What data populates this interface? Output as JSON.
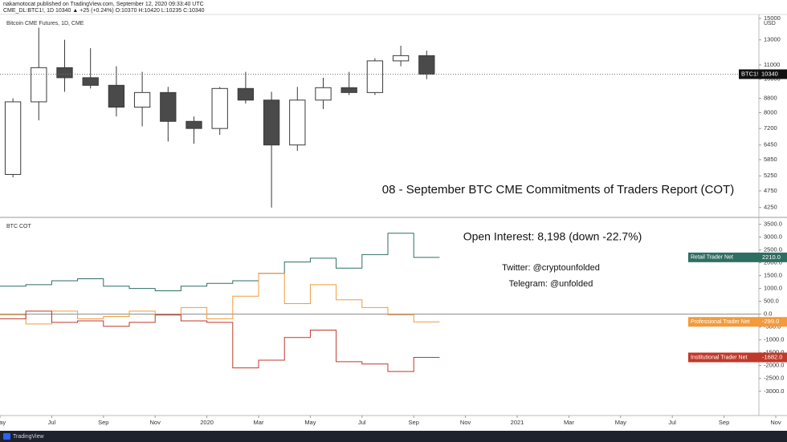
{
  "header": {
    "line1": "nakamotocat published on TradingView.com, September 12, 2020 09:33:40 UTC",
    "line2": "CME_DL:BTC1!, 1D  10340 ▲ +25 (+0.24%) O:10370 H:10420 L:10235 C:10340"
  },
  "footer": {
    "brand": "TradingView"
  },
  "chart_data": [
    {
      "type": "candlestick",
      "title": "Bitcoin CME Futures, 1D, CME",
      "unit": "USD",
      "annotation": "08 - September BTC CME Commitments of Traders Report (COT)",
      "price_label": "BTC1!",
      "x": [
        "2019-05",
        "2019-06",
        "2019-07",
        "2019-08",
        "2019-09",
        "2019-10",
        "2019-11",
        "2019-12",
        "2020-01",
        "2020-02",
        "2020-03",
        "2020-04",
        "2020-05",
        "2020-06",
        "2020-07",
        "2020-08",
        "2020-09"
      ],
      "open": [
        5300,
        8600,
        10800,
        10100,
        9600,
        8300,
        9150,
        7550,
        7200,
        9400,
        8700,
        6450,
        8700,
        9450,
        9150,
        11300,
        11700
      ],
      "high": [
        8800,
        14100,
        13000,
        12300,
        10900,
        10500,
        9500,
        7800,
        9500,
        10500,
        9200,
        9500,
        10100,
        10500,
        11500,
        12500,
        12100
      ],
      "low": [
        5200,
        7600,
        9200,
        9400,
        7800,
        7300,
        6600,
        6500,
        6900,
        8500,
        4250,
        6200,
        8200,
        9000,
        9000,
        10900,
        10000
      ],
      "close": [
        8600,
        10800,
        10100,
        9600,
        8300,
        9150,
        7550,
        7200,
        9400,
        8700,
        6450,
        8700,
        9450,
        9150,
        11300,
        11700,
        10340
      ],
      "up_color": "#ffffff",
      "down_color": "#4a4a4a",
      "line_color": "#3a3a3a",
      "log_scale": true,
      "ylim": [
        3980,
        15400
      ],
      "yticks": [
        4250,
        4750,
        5250,
        5850,
        6450,
        7200,
        8000,
        8800,
        10000,
        11000,
        13000,
        15000
      ],
      "xlim": [
        "2019-05",
        "2021-11"
      ],
      "xticks": [
        {
          "value": "2019-05",
          "label": "May"
        },
        {
          "value": "2019-07",
          "label": "Jul"
        },
        {
          "value": "2019-09",
          "label": "Sep"
        },
        {
          "value": "2019-11",
          "label": "Nov"
        },
        {
          "value": "2020-01",
          "label": "2020"
        },
        {
          "value": "2020-03",
          "label": "Mar"
        },
        {
          "value": "2020-05",
          "label": "May"
        },
        {
          "value": "2020-07",
          "label": "Jul"
        },
        {
          "value": "2020-09",
          "label": "Sep"
        },
        {
          "value": "2020-11",
          "label": "Nov"
        },
        {
          "value": "2021-01",
          "label": "2021"
        },
        {
          "value": "2021-03",
          "label": "Mar"
        },
        {
          "value": "2021-05",
          "label": "May"
        },
        {
          "value": "2021-07",
          "label": "Jul"
        },
        {
          "value": "2021-09",
          "label": "Sep"
        },
        {
          "value": "2021-11",
          "label": "Nov"
        }
      ]
    },
    {
      "type": "line",
      "title": "BTC COT",
      "step": true,
      "annotations": [
        "Open Interest: 8,198  (down -22.7%)",
        "Twitter: @cryptounfolded",
        "Telegram: @unfolded"
      ],
      "x": [
        "2019-05",
        "2019-06",
        "2019-07",
        "2019-08",
        "2019-09",
        "2019-10",
        "2019-11",
        "2019-12",
        "2020-01",
        "2020-02",
        "2020-03",
        "2020-04",
        "2020-05",
        "2020-06",
        "2020-07",
        "2020-08",
        "2020-09"
      ],
      "xlim": [
        "2019-05",
        "2021-11"
      ],
      "series": [
        {
          "name": "Retail Trader Net",
          "color": "#2f6e62",
          "values": [
            1090,
            1150,
            1300,
            1380,
            1090,
            1000,
            910,
            1090,
            1200,
            1300,
            1590,
            2030,
            2180,
            1790,
            2320,
            3150,
            2210
          ],
          "value_labels": [
            null,
            null,
            null,
            null,
            null,
            null,
            null,
            null,
            null,
            null,
            null,
            null,
            null,
            null,
            null,
            null,
            "2210.0"
          ]
        },
        {
          "name": "Professional Trader Net",
          "color": "#f39a3c",
          "values": [
            -30,
            -380,
            120,
            -180,
            -90,
            120,
            -30,
            260,
            -180,
            700,
            1590,
            410,
            1150,
            560,
            260,
            -30,
            -299
          ],
          "value_labels": [
            null,
            null,
            null,
            null,
            null,
            null,
            null,
            null,
            null,
            null,
            null,
            null,
            null,
            null,
            null,
            null,
            "-299.0"
          ]
        },
        {
          "name": "Institutional Trader Net",
          "color": "#c0392b",
          "values": [
            -180,
            120,
            -320,
            -260,
            -470,
            -320,
            -30,
            -260,
            -320,
            -2090,
            -1790,
            -910,
            -620,
            -1850,
            -1940,
            -2230,
            -1682
          ],
          "value_labels": [
            null,
            null,
            null,
            null,
            null,
            null,
            null,
            null,
            null,
            null,
            null,
            null,
            null,
            null,
            null,
            null,
            "-1682.0"
          ]
        }
      ],
      "zero_line": true,
      "ylim": [
        -3850,
        3735
      ],
      "yticks": [
        {
          "value": -3000,
          "label": "-3000.0"
        },
        {
          "value": -2500,
          "label": "-2500.0"
        },
        {
          "value": -2000,
          "label": "-2000.0"
        },
        {
          "value": -1500,
          "label": "-1500.0"
        },
        {
          "value": -1000,
          "label": "-1000.0"
        },
        {
          "value": -500,
          "label": "-500.0"
        },
        {
          "value": 0,
          "label": "0.0"
        },
        {
          "value": 500,
          "label": "500.0"
        },
        {
          "value": 1000,
          "label": "1000.0"
        },
        {
          "value": 1500,
          "label": "1500.0"
        },
        {
          "value": 2000,
          "label": "2000.0"
        },
        {
          "value": 2500,
          "label": "2500.0"
        },
        {
          "value": 3000,
          "label": "3000.0"
        },
        {
          "value": 3500,
          "label": "3500.0"
        }
      ]
    }
  ]
}
